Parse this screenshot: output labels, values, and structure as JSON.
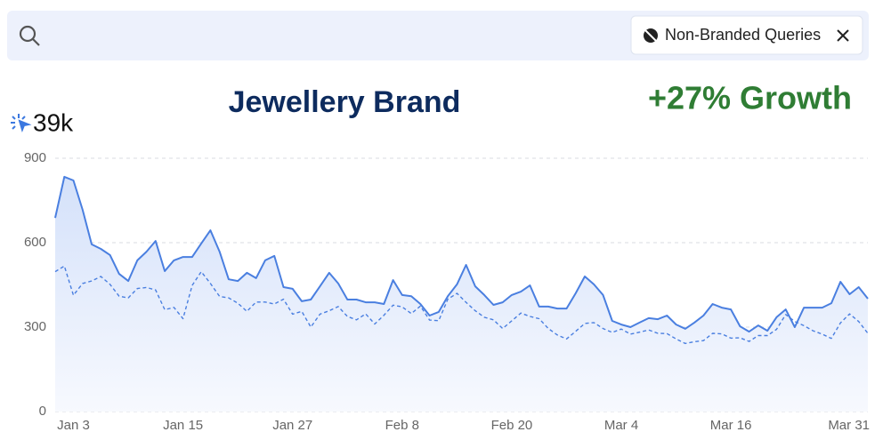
{
  "search": {
    "chip": "Non-Branded Queries"
  },
  "metric_label": "39k",
  "chart_data": {
    "type": "line",
    "title": "Jewellery Brand",
    "annotation": "+27% Growth",
    "categories": [
      null,
      null,
      "Jan 3",
      null,
      null,
      null,
      null,
      null,
      null,
      null,
      null,
      null,
      null,
      null,
      "Jan 15",
      null,
      null,
      null,
      null,
      null,
      null,
      null,
      null,
      null,
      null,
      null,
      "Jan 27",
      null,
      null,
      null,
      null,
      null,
      null,
      null,
      null,
      null,
      null,
      null,
      "Feb 8",
      null,
      null,
      null,
      null,
      null,
      null,
      null,
      null,
      null,
      null,
      null,
      "Feb 20",
      null,
      null,
      null,
      null,
      null,
      null,
      null,
      null,
      null,
      null,
      null,
      "Mar 4",
      null,
      null,
      null,
      null,
      null,
      null,
      null,
      null,
      null,
      null,
      null,
      "Mar 16",
      null,
      null,
      null,
      null,
      null,
      null,
      null,
      null,
      null,
      null,
      null,
      null,
      null,
      null,
      "Mar 31"
    ],
    "series": [
      {
        "color": "#4a7fe0",
        "style": "solid",
        "fill": true,
        "values": [
          688,
          834,
          821,
          717,
          594,
          578,
          556,
          489,
          464,
          537,
          568,
          606,
          499,
          537,
          549,
          549,
          597,
          644,
          568,
          470,
          464,
          493,
          474,
          537,
          553,
          442,
          436,
          392,
          398,
          445,
          493,
          455,
          398,
          398,
          388,
          388,
          382,
          467,
          414,
          410,
          382,
          341,
          354,
          410,
          452,
          521,
          445,
          414,
          379,
          388,
          414,
          426,
          448,
          373,
          373,
          366,
          366,
          420,
          480,
          452,
          414,
          322,
          309,
          300,
          316,
          332,
          328,
          341,
          309,
          294,
          316,
          341,
          382,
          369,
          363,
          303,
          284,
          306,
          287,
          335,
          363,
          300,
          369,
          369,
          369,
          385,
          461,
          417,
          442,
          401
        ]
      },
      {
        "color": "#4a7fe0",
        "style": "dashed",
        "fill": false,
        "values": [
          497,
          517,
          413,
          455,
          464,
          480,
          452,
          410,
          404,
          437,
          441,
          432,
          362,
          370,
          330,
          448,
          497,
          455,
          409,
          404,
          385,
          356,
          389,
          389,
          382,
          399,
          346,
          356,
          300,
          346,
          358,
          373,
          338,
          326,
          347,
          311,
          342,
          378,
          372,
          348,
          375,
          325,
          323,
          399,
          420,
          388,
          358,
          335,
          326,
          295,
          322,
          350,
          338,
          330,
          295,
          272,
          258,
          285,
          313,
          316,
          295,
          281,
          293,
          275,
          282,
          290,
          278,
          277,
          258,
          242,
          248,
          252,
          278,
          276,
          261,
          262,
          249,
          270,
          270,
          292,
          345,
          320,
          305,
          287,
          275,
          260,
          315,
          347,
          320,
          278
        ]
      }
    ],
    "ylim": [
      0,
      900
    ],
    "yticks": [
      0,
      300,
      600,
      900
    ],
    "grid": true
  }
}
